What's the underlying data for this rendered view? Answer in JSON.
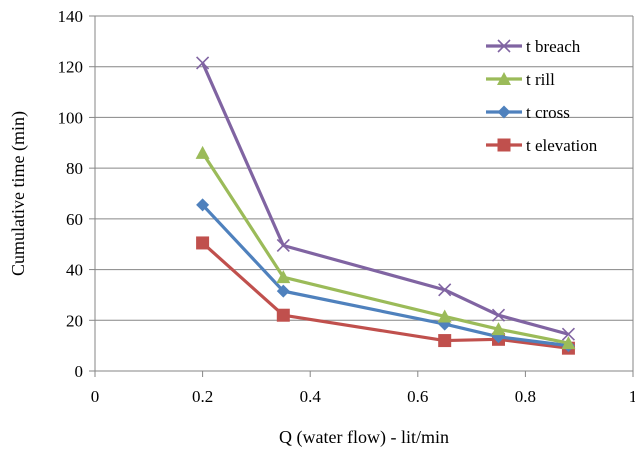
{
  "chart_data": {
    "type": "line",
    "xlabel": "Q (water flow) - lit/min",
    "ylabel": "Cumulative time (min)",
    "xlim": [
      0,
      1
    ],
    "ylim": [
      0,
      140
    ],
    "xticks": [
      "0",
      "0.2",
      "0.4",
      "0.6",
      "0.8",
      "1"
    ],
    "yticks": [
      "0",
      "20",
      "40",
      "60",
      "80",
      "100",
      "120",
      "140"
    ],
    "grid": "horizontal",
    "legend_position": "top-right",
    "x": [
      0.2,
      0.35,
      0.65,
      0.75,
      0.88
    ],
    "series": [
      {
        "name": "t breach",
        "color": "#8064A2",
        "marker": "x",
        "values": [
          121.5,
          49.5,
          32,
          22,
          14.5
        ]
      },
      {
        "name": "t rill",
        "color": "#9BBB59",
        "marker": "triangle",
        "values": [
          86,
          37,
          21.5,
          16.5,
          11
        ]
      },
      {
        "name": "t cross",
        "color": "#4F81BD",
        "marker": "diamond",
        "values": [
          65.5,
          31.5,
          18.5,
          13.5,
          10
        ]
      },
      {
        "name": "t elevation",
        "color": "#C0504D",
        "marker": "square",
        "values": [
          50.5,
          22,
          12,
          12.5,
          9
        ]
      }
    ]
  }
}
